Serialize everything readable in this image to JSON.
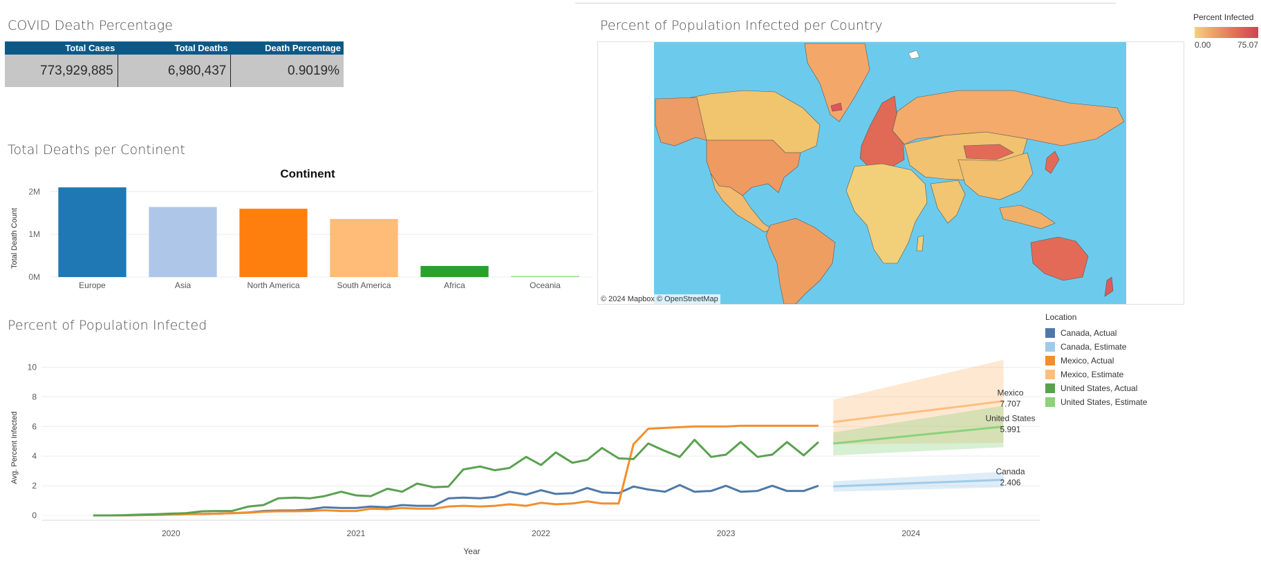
{
  "dashboard": {
    "kpi_title": "COVID Death Percentage",
    "bar_title": "Total Deaths per Continent",
    "map_title": "Percent of Population Infected per Country",
    "line_title": "Percent of Population Infected"
  },
  "kpi": {
    "headers": [
      "Total Cases",
      "Total Deaths",
      "Death Percentage"
    ],
    "values": [
      "773,929,885",
      "6,980,437",
      "0.9019%"
    ]
  },
  "map": {
    "legend_title": "Percent Infected",
    "legend_min": "0.00",
    "legend_max": "75.07",
    "credit": "© 2024 Mapbox  © OpenStreetMap",
    "colors": {
      "ocean": "#6ccbed",
      "low": "#f1d281",
      "mid": "#ec9c64",
      "high": "#e26a5a",
      "max": "#cf4455"
    }
  },
  "series_legend": {
    "title": "Location",
    "items": [
      {
        "label": "Canada, Actual",
        "color": "#4e79a7"
      },
      {
        "label": "Canada, Estimate",
        "color": "#a0cbe8"
      },
      {
        "label": "Mexico, Actual",
        "color": "#f28e2b"
      },
      {
        "label": "Mexico, Estimate",
        "color": "#ffbe7d"
      },
      {
        "label": "United States, Actual",
        "color": "#59a14f"
      },
      {
        "label": "United States, Estimate",
        "color": "#8cd17d"
      }
    ]
  },
  "chart_data": [
    {
      "type": "bar",
      "title": "Continent",
      "xlabel": "",
      "ylabel": "Total Death Count",
      "categories": [
        "Europe",
        "Asia",
        "North America",
        "South America",
        "Africa",
        "Oceania"
      ],
      "values": [
        2100000,
        1640000,
        1600000,
        1360000,
        260000,
        25000
      ],
      "colors": [
        "#1f77b4",
        "#aec7e8",
        "#ff7f0e",
        "#ffbb78",
        "#2ca02c",
        "#98df8a"
      ],
      "ylim": [
        0,
        2200000
      ],
      "yticks": [
        0,
        1000000,
        2000000
      ],
      "ytick_labels": [
        "0M",
        "1M",
        "2M"
      ],
      "grid": true
    },
    {
      "type": "line",
      "title": "",
      "xlabel": "Year",
      "ylabel": "Avg. Percent Infected",
      "ylim": [
        0,
        11
      ],
      "yticks": [
        0,
        2,
        4,
        6,
        8,
        10
      ],
      "xlim": [
        2019.3,
        2024.7
      ],
      "xticks": [
        2020,
        2021,
        2022,
        2023,
        2024
      ],
      "x": [
        2019.58,
        2019.67,
        2019.75,
        2019.83,
        2019.92,
        2020.0,
        2020.08,
        2020.17,
        2020.25,
        2020.33,
        2020.42,
        2020.5,
        2020.58,
        2020.67,
        2020.75,
        2020.83,
        2020.92,
        2021.0,
        2021.08,
        2021.17,
        2021.25,
        2021.33,
        2021.42,
        2021.5,
        2021.58,
        2021.67,
        2021.75,
        2021.83,
        2021.92,
        2022.0,
        2022.08,
        2022.17,
        2022.25,
        2022.33,
        2022.42,
        2022.5,
        2022.58,
        2022.67,
        2022.75,
        2022.83,
        2022.92,
        2023.0,
        2023.08,
        2023.17,
        2023.25,
        2023.33,
        2023.42,
        2023.5
      ],
      "series": [
        {
          "name": "Canada, Actual",
          "color": "#4e79a7",
          "values": [
            0.0,
            0.0,
            0.0,
            0.03,
            0.05,
            0.08,
            0.1,
            0.1,
            0.12,
            0.15,
            0.2,
            0.3,
            0.33,
            0.33,
            0.4,
            0.55,
            0.5,
            0.5,
            0.6,
            0.55,
            0.7,
            0.65,
            0.65,
            1.15,
            1.2,
            1.15,
            1.25,
            1.6,
            1.4,
            1.7,
            1.45,
            1.5,
            1.85,
            1.55,
            1.5,
            1.95,
            1.75,
            1.6,
            2.05,
            1.6,
            1.65,
            2.0,
            1.6,
            1.65,
            2.0,
            1.65,
            1.65,
            2.0
          ]
        },
        {
          "name": "Mexico, Actual",
          "color": "#f28e2b",
          "values": [
            0.0,
            0.0,
            0.0,
            0.02,
            0.03,
            0.05,
            0.08,
            0.1,
            0.12,
            0.15,
            0.18,
            0.25,
            0.28,
            0.28,
            0.3,
            0.35,
            0.3,
            0.3,
            0.45,
            0.42,
            0.5,
            0.45,
            0.45,
            0.6,
            0.65,
            0.6,
            0.65,
            0.75,
            0.65,
            0.85,
            0.75,
            0.8,
            0.95,
            0.8,
            0.8,
            4.8,
            5.85,
            5.9,
            5.95,
            6.0,
            6.0,
            6.0,
            6.05,
            6.05,
            6.05,
            6.05,
            6.05,
            6.05
          ]
        },
        {
          "name": "United States, Actual",
          "color": "#59a14f",
          "values": [
            0.0,
            0.0,
            0.02,
            0.05,
            0.08,
            0.12,
            0.15,
            0.28,
            0.3,
            0.3,
            0.6,
            0.7,
            1.15,
            1.2,
            1.15,
            1.3,
            1.6,
            1.35,
            1.3,
            1.8,
            1.6,
            2.15,
            1.9,
            1.95,
            3.1,
            3.3,
            3.05,
            3.2,
            3.95,
            3.4,
            4.25,
            3.55,
            3.75,
            4.55,
            3.85,
            3.8,
            4.85,
            4.35,
            3.95,
            5.1,
            3.95,
            4.1,
            4.95,
            3.95,
            4.1,
            4.95,
            4.05,
            4.95
          ]
        }
      ],
      "forecast": {
        "x": [
          2023.58,
          2024.5
        ],
        "series": [
          {
            "name": "Canada, Estimate",
            "color": "#a0cbe8",
            "start": 1.96,
            "end": 2.406,
            "band_start": [
              1.6,
              2.3
            ],
            "band_end": [
              1.9,
              2.95
            ],
            "label": "Canada",
            "value_label": "2.406"
          },
          {
            "name": "Mexico, Estimate",
            "color": "#ffbe7d",
            "start": 6.3,
            "end": 7.707,
            "band_start": [
              4.8,
              7.8
            ],
            "band_end": [
              4.9,
              10.5
            ],
            "label": "Mexico",
            "value_label": "7.707"
          },
          {
            "name": "United States, Estimate",
            "color": "#8cd17d",
            "start": 4.85,
            "end": 5.991,
            "band_start": [
              4.05,
              5.6
            ],
            "band_end": [
              4.6,
              7.4
            ],
            "label": "United States",
            "value_label": "5.991"
          }
        ]
      },
      "grid": true
    }
  ]
}
